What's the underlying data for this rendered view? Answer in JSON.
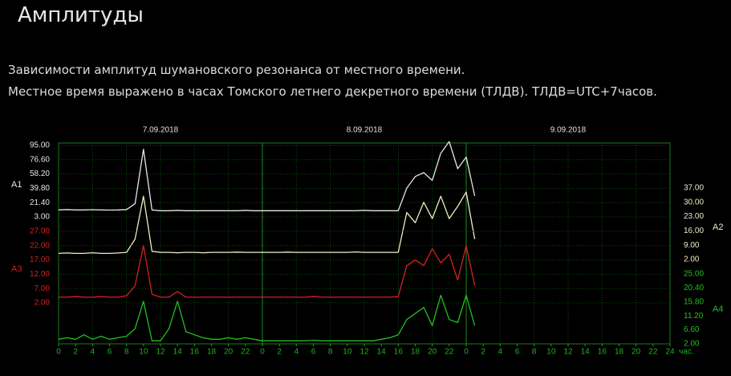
{
  "page": {
    "title": "Амплитуды",
    "paragraphs": [
      "Зависимости амплитуд шумановского резонанса от местного времени.",
      "Местное время выражено в часах Томского летнего декретного времени (ТЛДВ). ТЛДВ=UTC+7часов."
    ]
  },
  "chart_data": {
    "type": "line",
    "dates": [
      "7.09.2018",
      "8.09.2018",
      "9.09.2018"
    ],
    "x_label": "час.",
    "grid": true,
    "xlim": [
      0,
      72
    ],
    "xticks": [
      0,
      2,
      4,
      6,
      8,
      10,
      12,
      14,
      16,
      18,
      20,
      22,
      {
        "value": 24,
        "label": "0"
      },
      {
        "value": 26,
        "label": "2"
      },
      {
        "value": 28,
        "label": "4"
      },
      {
        "value": 30,
        "label": "6"
      },
      {
        "value": 32,
        "label": "8"
      },
      {
        "value": 34,
        "label": "10"
      },
      {
        "value": 36,
        "label": "12"
      },
      {
        "value": 38,
        "label": "14"
      },
      {
        "value": 40,
        "label": "16"
      },
      {
        "value": 42,
        "label": "18"
      },
      {
        "value": 44,
        "label": "20"
      },
      {
        "value": 46,
        "label": "22"
      },
      {
        "value": 48,
        "label": "0"
      },
      {
        "value": 50,
        "label": "2"
      },
      {
        "value": 52,
        "label": "4"
      },
      {
        "value": 54,
        "label": "6"
      },
      {
        "value": 56,
        "label": "8"
      },
      {
        "value": 58,
        "label": "10"
      },
      {
        "value": 60,
        "label": "12"
      },
      {
        "value": 62,
        "label": "14"
      },
      {
        "value": 64,
        "label": "16"
      },
      {
        "value": 66,
        "label": "18"
      },
      {
        "value": 68,
        "label": "20"
      },
      {
        "value": 70,
        "label": "22"
      },
      {
        "value": 72,
        "label": "24"
      }
    ],
    "x": [
      0,
      1,
      2,
      3,
      4,
      5,
      6,
      7,
      8,
      9,
      10,
      11,
      12,
      13,
      14,
      15,
      16,
      17,
      18,
      19,
      20,
      21,
      22,
      23,
      24,
      25,
      26,
      27,
      28,
      29,
      30,
      31,
      32,
      33,
      34,
      35,
      36,
      37,
      38,
      39,
      40,
      41,
      42,
      43,
      44,
      45,
      46,
      47,
      48,
      49
    ],
    "series": [
      {
        "name": "A1",
        "color": "#e6e6e6",
        "side": "left",
        "ylim": [
          3,
          95
        ],
        "yticks": [
          {
            "value": 95,
            "label": "95.00"
          },
          {
            "value": 76.6,
            "label": "76.60"
          },
          {
            "value": 58.2,
            "label": "58.20"
          },
          {
            "value": 39.8,
            "label": "39.80"
          },
          {
            "value": 21.4,
            "label": "21.40"
          },
          {
            "value": 3,
            "label": "3.00"
          }
        ],
        "values": [
          12,
          12.5,
          12,
          12,
          12.3,
          12,
          11.8,
          12,
          12.5,
          20,
          90,
          12,
          11,
          11,
          11.5,
          11,
          11,
          11,
          11,
          11,
          11,
          11,
          11.5,
          11,
          11,
          11,
          11,
          11,
          11,
          11,
          11,
          11,
          11,
          11,
          11,
          11,
          11.5,
          11,
          11,
          11,
          11,
          40,
          55,
          60,
          50,
          85,
          100,
          65,
          80,
          30
        ]
      },
      {
        "name": "A2",
        "color": "#eeeec4",
        "side": "right",
        "ylim": [
          2,
          37
        ],
        "yticks": [
          {
            "value": 37,
            "label": "37.00"
          },
          {
            "value": 30,
            "label": "30.00"
          },
          {
            "value": 23,
            "label": "23.00"
          },
          {
            "value": 16,
            "label": "16.00"
          },
          {
            "value": 9,
            "label": "9.00"
          },
          {
            "value": 2,
            "label": "2.00"
          }
        ],
        "values": [
          5,
          5.2,
          5,
          5,
          5.3,
          5,
          5,
          5.2,
          5.5,
          12,
          33,
          6,
          5.5,
          5.5,
          5.3,
          5.5,
          5.5,
          5.3,
          5.5,
          5.5,
          5.5,
          5.6,
          5.5,
          5.5,
          5.5,
          5.5,
          5.5,
          5.6,
          5.5,
          5.5,
          5.5,
          5.5,
          5.5,
          5.5,
          5.5,
          5.7,
          5.5,
          5.5,
          5.5,
          5.5,
          5.5,
          25,
          20,
          30,
          22,
          33,
          22,
          28,
          35,
          12
        ]
      },
      {
        "name": "A3",
        "color": "#d42020",
        "side": "left",
        "ylim": [
          2,
          27
        ],
        "yticks": [
          {
            "value": 27,
            "label": "27.00"
          },
          {
            "value": 22,
            "label": "22.00"
          },
          {
            "value": 17,
            "label": "17.00"
          },
          {
            "value": 12,
            "label": "12.00"
          },
          {
            "value": 7,
            "label": "7.00"
          },
          {
            "value": 2,
            "label": "2.00"
          }
        ],
        "values": [
          4,
          4,
          4.2,
          4,
          4,
          4.2,
          4,
          4,
          4.5,
          8,
          22,
          5,
          4,
          4,
          6,
          4,
          4,
          4,
          4,
          4,
          4,
          4,
          4,
          4,
          4,
          4,
          4,
          4,
          4,
          4,
          4.2,
          4,
          4,
          4,
          4,
          4,
          4,
          4,
          4,
          4,
          4.2,
          15,
          17,
          15,
          21,
          16,
          19,
          10,
          22,
          8
        ]
      },
      {
        "name": "A4",
        "color": "#22c022",
        "side": "right",
        "ylim": [
          2,
          25
        ],
        "yticks": [
          {
            "value": 25,
            "label": "25.00"
          },
          {
            "value": 20.4,
            "label": "20.40"
          },
          {
            "value": 15.8,
            "label": "15.80"
          },
          {
            "value": 11.2,
            "label": "11.20"
          },
          {
            "value": 6.6,
            "label": "6.60"
          },
          {
            "value": 2,
            "label": "2.00"
          }
        ],
        "values": [
          3.5,
          4,
          3.5,
          5,
          3.5,
          4.5,
          3.5,
          4,
          4.5,
          7,
          16,
          3,
          3,
          7,
          16,
          6,
          5,
          4,
          3.5,
          3.5,
          4,
          3.5,
          4,
          3.5,
          3,
          3,
          3,
          3,
          3,
          3,
          3.2,
          3,
          3,
          3,
          3,
          3,
          3,
          3,
          3.5,
          4,
          5,
          10,
          12,
          14,
          8,
          18,
          10,
          9,
          18,
          8
        ]
      }
    ]
  }
}
